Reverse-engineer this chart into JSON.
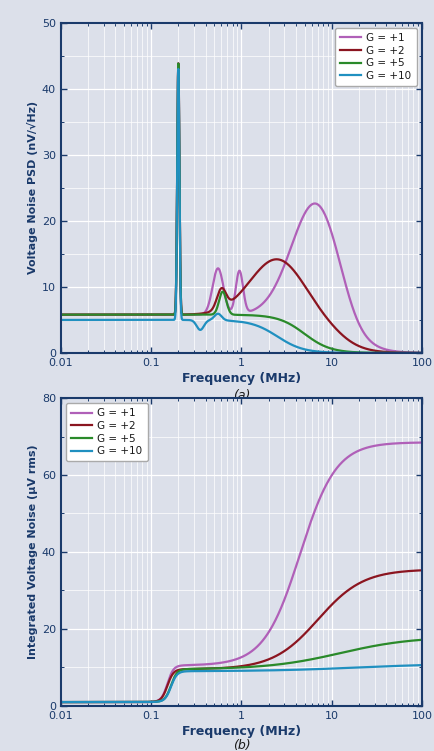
{
  "fig_width": 4.35,
  "fig_height": 7.51,
  "dpi": 100,
  "background_color": "#dce0ea",
  "plot_bg_color": "#dce0ea",
  "border_color": "#1a3a6b",
  "grid_color": "#ffffff",
  "title_a": "(a)",
  "title_b": "(b)",
  "colors": {
    "G1": "#b060b8",
    "G2": "#8b1520",
    "G5": "#2a8a2a",
    "G10": "#2090c0"
  },
  "legend_labels": [
    "G = +1",
    "G = +2",
    "G = +5",
    "G = +10"
  ],
  "plot_a": {
    "xlabel": "Frequency (MHz)",
    "ylabel": "Voltage Noise PSD (nV/√Hz)",
    "xlim": [
      0.01,
      100
    ],
    "ylim": [
      0,
      50
    ],
    "yticks": [
      0,
      10,
      20,
      30,
      40,
      50
    ]
  },
  "plot_b": {
    "xlabel": "Frequency (MHz)",
    "ylabel": "Integrated Voltage Noise (µV rms)",
    "xlim": [
      0.01,
      100
    ],
    "ylim": [
      0,
      80
    ],
    "yticks": [
      0,
      20,
      40,
      60,
      80
    ]
  },
  "xticks": [
    0.01,
    0.1,
    1,
    10,
    100
  ],
  "xticklabels": [
    "0.01",
    "0.1",
    "1",
    "10",
    "100"
  ]
}
